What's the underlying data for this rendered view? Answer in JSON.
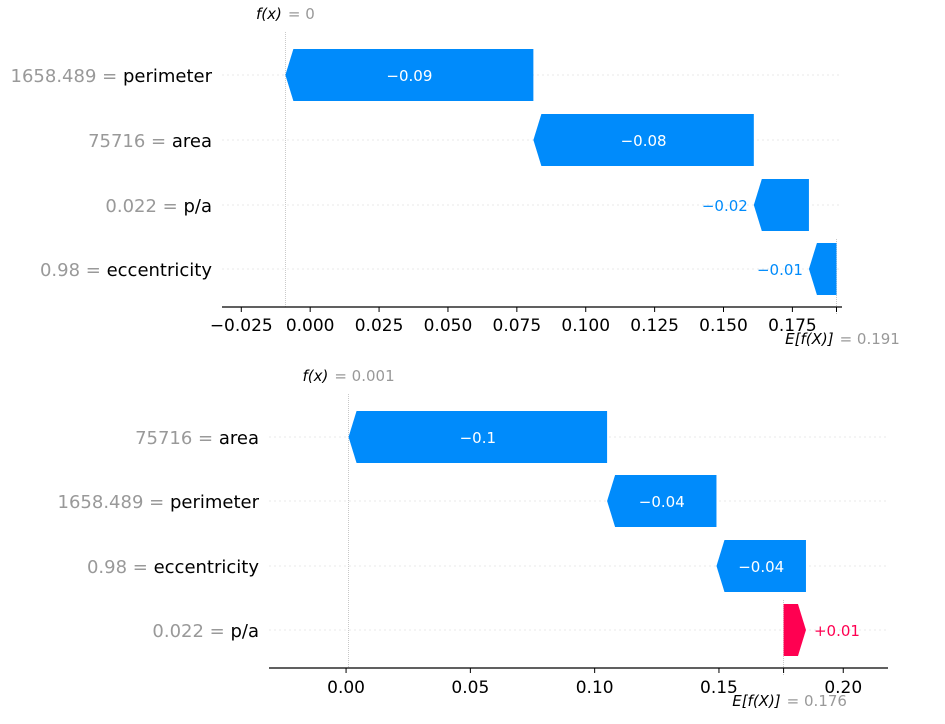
{
  "chart_data": [
    {
      "type": "waterfall",
      "fx_label": "f(x)",
      "fx_value": "0",
      "ef_label": "E[f(X)]",
      "ef_value": "0.191",
      "base_value": 0.191,
      "xlim": [
        -0.032,
        0.193
      ],
      "xticks": [
        -0.025,
        0.0,
        0.025,
        0.05,
        0.075,
        0.1,
        0.125,
        0.15,
        0.175
      ],
      "xtick_labels": [
        "−0.025",
        "0.000",
        "0.025",
        "0.050",
        "0.075",
        "0.100",
        "0.125",
        "0.150",
        "0.175"
      ],
      "features": [
        {
          "value": "1658.489",
          "name": "perimeter",
          "contribution": -0.09,
          "label": "−0.09"
        },
        {
          "value": "75716",
          "name": "area",
          "contribution": -0.08,
          "label": "−0.08"
        },
        {
          "value": "0.022",
          "name": "p/a",
          "contribution": -0.02,
          "label": "−0.02"
        },
        {
          "value": "0.98",
          "name": "eccentricity",
          "contribution": -0.01,
          "label": "−0.01"
        }
      ]
    },
    {
      "type": "waterfall",
      "fx_label": "f(x)",
      "fx_value": "0.001",
      "ef_label": "E[f(X)]",
      "ef_value": "0.176",
      "base_value": 0.176,
      "xlim": [
        -0.031,
        0.218
      ],
      "xticks": [
        0.0,
        0.05,
        0.1,
        0.15,
        0.2
      ],
      "xtick_labels": [
        "0.00",
        "0.05",
        "0.10",
        "0.15",
        "0.20"
      ],
      "features": [
        {
          "value": "75716",
          "name": "area",
          "contribution": -0.104,
          "label": "−0.1"
        },
        {
          "value": "1658.489",
          "name": "perimeter",
          "contribution": -0.044,
          "label": "−0.04"
        },
        {
          "value": "0.98",
          "name": "eccentricity",
          "contribution": -0.036,
          "label": "−0.04"
        },
        {
          "value": "0.022",
          "name": "p/a",
          "contribution": 0.009,
          "label": "+0.01"
        }
      ]
    }
  ],
  "colors": {
    "negative": "#008bfb",
    "positive": "#ff0051",
    "muted_text": "#999999",
    "grid": "#e8e8e8"
  }
}
